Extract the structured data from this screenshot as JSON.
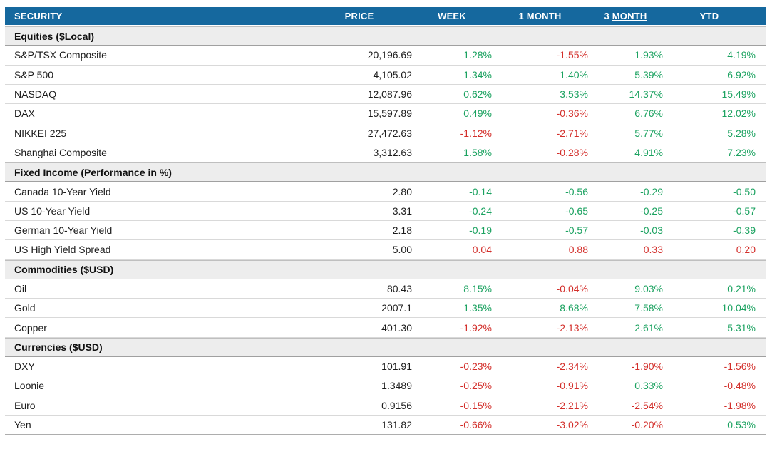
{
  "colors": {
    "header_bg": "#15689E",
    "header_text": "#FFFFFF",
    "section_bg": "#EDEDED",
    "positive_green": "#1BA260",
    "negative_red": "#D32F2B",
    "row_border": "#D9D9D9",
    "section_border": "#A0A0A0"
  },
  "chart_data": {
    "type": "table",
    "columns": [
      "SECURITY",
      "PRICE",
      "WEEK",
      "1 MONTH",
      "3 MONTH",
      "YTD"
    ],
    "header": {
      "col_3month_prefix": "3 ",
      "col_3month_underlined": "MONTH"
    },
    "sections": [
      {
        "title": "Equities ($Local)",
        "rows": [
          {
            "security": "S&P/TSX Composite",
            "price": "20,196.69",
            "changes": [
              {
                "v": "1.28%",
                "c": "green"
              },
              {
                "v": "-1.55%",
                "c": "red"
              },
              {
                "v": "1.93%",
                "c": "green"
              },
              {
                "v": "4.19%",
                "c": "green"
              }
            ]
          },
          {
            "security": "S&P 500",
            "price": "4,105.02",
            "changes": [
              {
                "v": "1.34%",
                "c": "green"
              },
              {
                "v": "1.40%",
                "c": "green"
              },
              {
                "v": "5.39%",
                "c": "green"
              },
              {
                "v": "6.92%",
                "c": "green"
              }
            ]
          },
          {
            "security": "NASDAQ",
            "price": "12,087.96",
            "changes": [
              {
                "v": "0.62%",
                "c": "green"
              },
              {
                "v": "3.53%",
                "c": "green"
              },
              {
                "v": "14.37%",
                "c": "green"
              },
              {
                "v": "15.49%",
                "c": "green"
              }
            ]
          },
          {
            "security": "DAX",
            "price": "15,597.89",
            "changes": [
              {
                "v": "0.49%",
                "c": "green"
              },
              {
                "v": "-0.36%",
                "c": "red"
              },
              {
                "v": "6.76%",
                "c": "green"
              },
              {
                "v": "12.02%",
                "c": "green"
              }
            ]
          },
          {
            "security": "NIKKEI 225",
            "price": "27,472.63",
            "changes": [
              {
                "v": "-1.12%",
                "c": "red"
              },
              {
                "v": "-2.71%",
                "c": "red"
              },
              {
                "v": "5.77%",
                "c": "green"
              },
              {
                "v": "5.28%",
                "c": "green"
              }
            ]
          },
          {
            "security": "Shanghai Composite",
            "price": "3,312.63",
            "changes": [
              {
                "v": "1.58%",
                "c": "green"
              },
              {
                "v": "-0.28%",
                "c": "red"
              },
              {
                "v": "4.91%",
                "c": "green"
              },
              {
                "v": "7.23%",
                "c": "green"
              }
            ]
          }
        ]
      },
      {
        "title": "Fixed Income (Performance in %)",
        "rows": [
          {
            "security": "Canada 10-Year Yield",
            "price": "2.80",
            "changes": [
              {
                "v": "-0.14",
                "c": "green"
              },
              {
                "v": "-0.56",
                "c": "green"
              },
              {
                "v": "-0.29",
                "c": "green"
              },
              {
                "v": "-0.50",
                "c": "green"
              }
            ]
          },
          {
            "security": "US 10-Year Yield",
            "price": "3.31",
            "changes": [
              {
                "v": "-0.24",
                "c": "green"
              },
              {
                "v": "-0.65",
                "c": "green"
              },
              {
                "v": "-0.25",
                "c": "green"
              },
              {
                "v": "-0.57",
                "c": "green"
              }
            ]
          },
          {
            "security": "German 10-Year Yield",
            "price": "2.18",
            "changes": [
              {
                "v": "-0.19",
                "c": "green"
              },
              {
                "v": "-0.57",
                "c": "green"
              },
              {
                "v": "-0.03",
                "c": "green"
              },
              {
                "v": "-0.39",
                "c": "green"
              }
            ]
          },
          {
            "security": "US High Yield Spread",
            "price": "5.00",
            "changes": [
              {
                "v": "0.04",
                "c": "red"
              },
              {
                "v": "0.88",
                "c": "red"
              },
              {
                "v": "0.33",
                "c": "red"
              },
              {
                "v": "0.20",
                "c": "red"
              }
            ]
          }
        ]
      },
      {
        "title": "Commodities ($USD)",
        "rows": [
          {
            "security": "Oil",
            "price": "80.43",
            "changes": [
              {
                "v": "8.15%",
                "c": "green"
              },
              {
                "v": "-0.04%",
                "c": "red"
              },
              {
                "v": "9.03%",
                "c": "green"
              },
              {
                "v": "0.21%",
                "c": "green"
              }
            ]
          },
          {
            "security": "Gold",
            "price": "2007.1",
            "changes": [
              {
                "v": "1.35%",
                "c": "green"
              },
              {
                "v": "8.68%",
                "c": "green"
              },
              {
                "v": "7.58%",
                "c": "green"
              },
              {
                "v": "10.04%",
                "c": "green"
              }
            ]
          },
          {
            "security": "Copper",
            "price": "401.30",
            "changes": [
              {
                "v": "-1.92%",
                "c": "red"
              },
              {
                "v": "-2.13%",
                "c": "red"
              },
              {
                "v": "2.61%",
                "c": "green"
              },
              {
                "v": "5.31%",
                "c": "green"
              }
            ]
          }
        ]
      },
      {
        "title": "Currencies ($USD)",
        "rows": [
          {
            "security": "DXY",
            "price": "101.91",
            "changes": [
              {
                "v": "-0.23%",
                "c": "red"
              },
              {
                "v": "-2.34%",
                "c": "red"
              },
              {
                "v": "-1.90%",
                "c": "red"
              },
              {
                "v": "-1.56%",
                "c": "red"
              }
            ]
          },
          {
            "security": "Loonie",
            "price": "1.3489",
            "changes": [
              {
                "v": "-0.25%",
                "c": "red"
              },
              {
                "v": "-0.91%",
                "c": "red"
              },
              {
                "v": "0.33%",
                "c": "green"
              },
              {
                "v": "-0.48%",
                "c": "red"
              }
            ]
          },
          {
            "security": "Euro",
            "price": "0.9156",
            "changes": [
              {
                "v": "-0.15%",
                "c": "red"
              },
              {
                "v": "-2.21%",
                "c": "red"
              },
              {
                "v": "-2.54%",
                "c": "red"
              },
              {
                "v": "-1.98%",
                "c": "red"
              }
            ]
          },
          {
            "security": "Yen",
            "price": "131.82",
            "changes": [
              {
                "v": "-0.66%",
                "c": "red"
              },
              {
                "v": "-3.02%",
                "c": "red"
              },
              {
                "v": "-0.20%",
                "c": "red"
              },
              {
                "v": "0.53%",
                "c": "green"
              }
            ]
          }
        ]
      }
    ]
  }
}
